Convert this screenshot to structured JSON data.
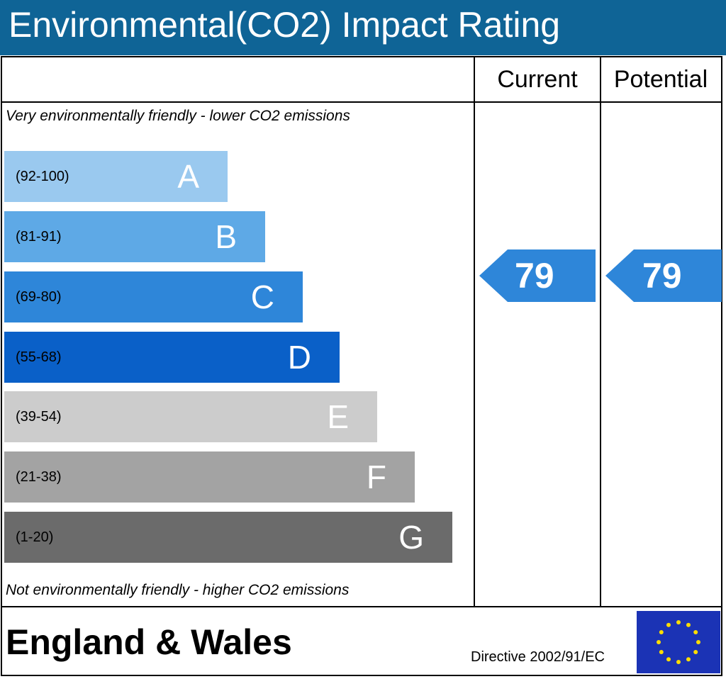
{
  "title": "Environmental(CO2) Impact Rating",
  "columns": {
    "current": "Current",
    "potential": "Potential"
  },
  "top_note": "Very environmentally friendly - lower CO2 emissions",
  "bottom_note": "Not environmentally friendly - higher CO2 emissions",
  "bands": [
    {
      "range": "(92-100)",
      "letter": "A",
      "color": "#9ac9ef"
    },
    {
      "range": "(81-91)",
      "letter": "B",
      "color": "#5ea9e6"
    },
    {
      "range": "(69-80)",
      "letter": "C",
      "color": "#2e86d9"
    },
    {
      "range": "(55-68)",
      "letter": "D",
      "color": "#0a60c8"
    },
    {
      "range": "(39-54)",
      "letter": "E",
      "color": "#cccccc"
    },
    {
      "range": "(21-38)",
      "letter": "F",
      "color": "#a3a3a3"
    },
    {
      "range": "(1-20)",
      "letter": "G",
      "color": "#6b6b6b"
    }
  ],
  "ratings": {
    "current": {
      "value": "79",
      "band": "C",
      "color": "#2e86d9"
    },
    "potential": {
      "value": "79",
      "band": "C",
      "color": "#2e86d9"
    }
  },
  "footer": {
    "region": "England & Wales",
    "directive": "Directive 2002/91/EC",
    "flag_icon": "eu-flag-icon"
  },
  "chart_data": {
    "type": "bar",
    "title": "Environmental(CO2) Impact Rating",
    "categories": [
      "A",
      "B",
      "C",
      "D",
      "E",
      "F",
      "G"
    ],
    "ranges": [
      "(92-100)",
      "(81-91)",
      "(69-80)",
      "(55-68)",
      "(39-54)",
      "(21-38)",
      "(1-20)"
    ],
    "current": 79,
    "potential": 79
  }
}
